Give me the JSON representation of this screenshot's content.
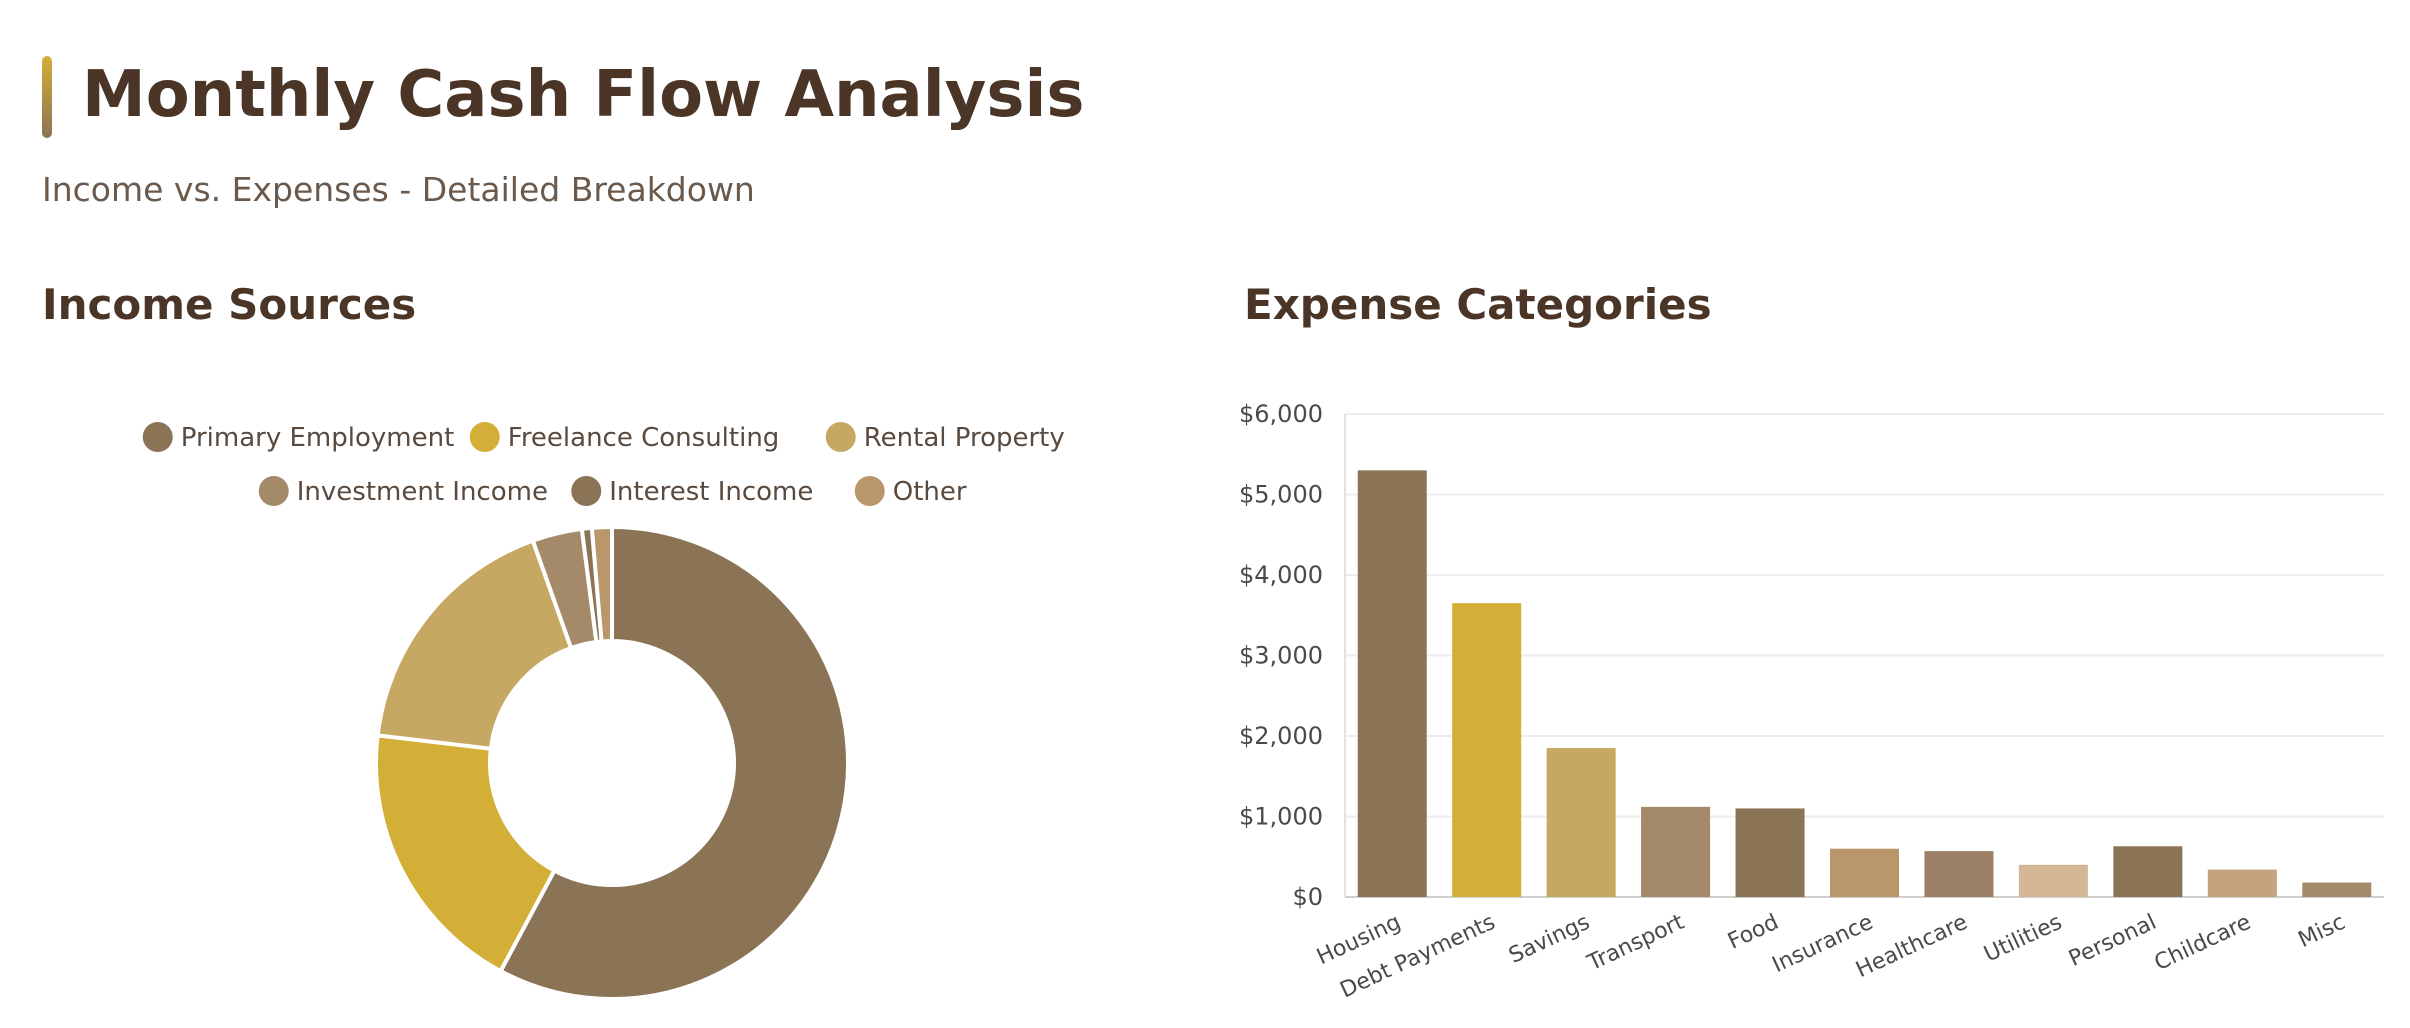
{
  "header": {
    "title": "Monthly Cash Flow Analysis",
    "subtitle": "Income vs. Expenses - Detailed Breakdown"
  },
  "sections": {
    "income_title": "Income Sources",
    "expense_title": "Expense Categories"
  },
  "chart_data": [
    {
      "type": "pie",
      "variant": "doughnut",
      "title": "Income Sources",
      "legend_position": "top",
      "labels": [
        "Primary Employment",
        "Freelance Consulting",
        "Rental Property",
        "Investment Income",
        "Interest Income",
        "Other"
      ],
      "values": [
        8500,
        2800,
        2600,
        500,
        100,
        200
      ],
      "colors": [
        "#8b7355",
        "#d4af37",
        "#c6a862",
        "#a58a6a",
        "#8b7355",
        "#b9976a"
      ]
    },
    {
      "type": "bar",
      "title": "Expense Categories",
      "categories": [
        "Housing",
        "Debt Payments",
        "Savings",
        "Transport",
        "Food",
        "Insurance",
        "Healthcare",
        "Utilities",
        "Personal",
        "Childcare",
        "Misc"
      ],
      "values": [
        5300,
        3650,
        1850,
        1120,
        1100,
        600,
        570,
        400,
        630,
        340,
        180
      ],
      "colors": [
        "#8b7355",
        "#d4af37",
        "#c6a862",
        "#a58a6a",
        "#8b7355",
        "#b9976a",
        "#9c8066",
        "#d4b896",
        "#8b7355",
        "#c4a47c",
        "#a58a6a"
      ],
      "ylim": [
        0,
        6000
      ],
      "yticks": [
        "$0",
        "$1,000",
        "$2,000",
        "$3,000",
        "$4,000",
        "$5,000",
        "$6,000"
      ],
      "grid": true,
      "legend": false
    }
  ]
}
